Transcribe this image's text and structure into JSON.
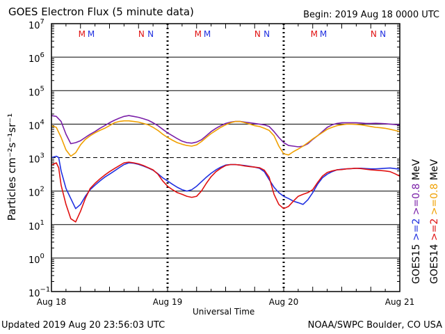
{
  "header": {
    "title": "GOES Electron Flux (5 minute data)",
    "begin": "Begin: 2019 Aug 18 0000 UTC"
  },
  "footer": {
    "updated": "Updated 2019 Aug 20 23:56:03 UTC",
    "credit": "NOAA/SWPC Boulder, CO USA"
  },
  "colors": {
    "goes15_ge2": "#1f2fe0",
    "goes14_ge2": "#e01010",
    "goes15_ge08": "#7a1fa8",
    "goes14_ge08": "#f0a000"
  },
  "chart_data": {
    "type": "line",
    "title": "GOES Electron Flux (5 minute data)",
    "xlabel": "Universal Time",
    "ylabel": "Particles cm⁻²s⁻¹sr⁻¹",
    "y_scale": "log",
    "ylim": [
      0.1,
      10000000
    ],
    "xlim": [
      0,
      72
    ],
    "x_unit": "hours since 2019 Aug 18 0000 UTC",
    "x_ticks": [
      {
        "x": 0,
        "label": "Aug 18"
      },
      {
        "x": 24,
        "label": "Aug 19"
      },
      {
        "x": 48,
        "label": "Aug 20"
      },
      {
        "x": 72,
        "label": "Aug 21"
      }
    ],
    "y_ticks": [
      {
        "exp": 7,
        "label": "10",
        "sup": "7"
      },
      {
        "exp": 6,
        "label": "10",
        "sup": "6"
      },
      {
        "exp": 5,
        "label": "10",
        "sup": "5"
      },
      {
        "exp": 4,
        "label": "10",
        "sup": "4"
      },
      {
        "exp": 3,
        "label": "10",
        "sup": "3"
      },
      {
        "exp": 2,
        "label": "10",
        "sup": "2"
      },
      {
        "exp": 1,
        "label": "10",
        "sup": "1"
      },
      {
        "exp": 0,
        "label": "10",
        "sup": "0"
      },
      {
        "exp": -1,
        "label": "10",
        "sup": "−1"
      }
    ],
    "grid_solid_exp": [
      6,
      5,
      4,
      2,
      1,
      0
    ],
    "grid_dashed_exp": [
      3
    ],
    "mn_markers": [
      {
        "x": 6.3,
        "letter": "M",
        "color": "#e01010"
      },
      {
        "x": 8.2,
        "letter": "M",
        "color": "#1f2fe0"
      },
      {
        "x": 18.6,
        "letter": "N",
        "color": "#e01010"
      },
      {
        "x": 20.5,
        "letter": "N",
        "color": "#1f2fe0"
      },
      {
        "x": 30.3,
        "letter": "M",
        "color": "#e01010"
      },
      {
        "x": 32.2,
        "letter": "M",
        "color": "#1f2fe0"
      },
      {
        "x": 42.6,
        "letter": "N",
        "color": "#e01010"
      },
      {
        "x": 44.5,
        "letter": "N",
        "color": "#1f2fe0"
      },
      {
        "x": 54.3,
        "letter": "M",
        "color": "#e01010"
      },
      {
        "x": 56.2,
        "letter": "M",
        "color": "#1f2fe0"
      },
      {
        "x": 66.6,
        "letter": "N",
        "color": "#e01010"
      },
      {
        "x": 68.5,
        "letter": "N",
        "color": "#1f2fe0"
      }
    ],
    "legend": [
      {
        "sat": "GOES15",
        "energy": ">=2",
        "energy2": ">=0.8",
        "unit": "MeV",
        "color2": "#1f2fe0",
        "color08": "#7a1fa8"
      },
      {
        "sat": "GOES14",
        "energy": ">=2",
        "energy2": ">=0.8",
        "unit": "MeV",
        "color2": "#e01010",
        "color08": "#f0a000"
      }
    ],
    "series": [
      {
        "name": "GOES15 >=2 MeV",
        "color": "#1f2fe0",
        "x": [
          0,
          1,
          1.5,
          2,
          3,
          4,
          5,
          6,
          7,
          8,
          9,
          10,
          11,
          12,
          13,
          14,
          15,
          16,
          17,
          18,
          19,
          20,
          21,
          22,
          23,
          24,
          25,
          26,
          27,
          28,
          29,
          30,
          31,
          32,
          33,
          34,
          35,
          36,
          37,
          38,
          39,
          40,
          41,
          42,
          43,
          44,
          45,
          46,
          47,
          48,
          49,
          50,
          51,
          52,
          53,
          54,
          55,
          56,
          57,
          58,
          59,
          60,
          61,
          62,
          63,
          64,
          65,
          66,
          67,
          68,
          69,
          70,
          71,
          72
        ],
        "values": [
          1000,
          1100,
          1000,
          400,
          120,
          60,
          30,
          40,
          70,
          110,
          150,
          200,
          260,
          320,
          400,
          500,
          620,
          700,
          680,
          630,
          560,
          490,
          420,
          330,
          250,
          200,
          160,
          130,
          110,
          100,
          110,
          140,
          190,
          260,
          340,
          430,
          520,
          600,
          620,
          620,
          600,
          580,
          550,
          520,
          480,
          380,
          220,
          130,
          90,
          70,
          60,
          50,
          45,
          40,
          55,
          90,
          160,
          250,
          320,
          380,
          430,
          450,
          460,
          470,
          480,
          480,
          470,
          460,
          460,
          470,
          480,
          490,
          470,
          450
        ]
      },
      {
        "name": "GOES14 >=2 MeV",
        "color": "#e01010",
        "x": [
          0,
          1,
          1.5,
          2,
          3,
          4,
          5,
          6,
          7,
          8,
          9,
          10,
          11,
          12,
          13,
          14,
          15,
          16,
          17,
          18,
          19,
          20,
          21,
          22,
          23,
          24,
          25,
          26,
          27,
          28,
          29,
          30,
          31,
          32,
          33,
          34,
          35,
          36,
          37,
          38,
          39,
          40,
          41,
          42,
          43,
          44,
          45,
          46,
          47,
          48,
          49,
          50,
          51,
          52,
          53,
          54,
          55,
          56,
          57,
          58,
          59,
          60,
          61,
          62,
          63,
          64,
          65,
          66,
          67,
          68,
          69,
          70,
          71,
          72
        ],
        "values": [
          600,
          700,
          500,
          150,
          40,
          15,
          12,
          25,
          60,
          120,
          170,
          230,
          300,
          380,
          470,
          570,
          700,
          730,
          700,
          650,
          580,
          500,
          430,
          320,
          200,
          140,
          110,
          90,
          80,
          70,
          65,
          70,
          100,
          170,
          270,
          380,
          480,
          580,
          620,
          620,
          600,
          560,
          540,
          520,
          500,
          420,
          260,
          80,
          40,
          30,
          35,
          50,
          70,
          80,
          90,
          110,
          180,
          280,
          360,
          400,
          430,
          440,
          460,
          470,
          480,
          470,
          450,
          430,
          420,
          410,
          400,
          380,
          330,
          280
        ]
      },
      {
        "name": "GOES15 >=0.8 MeV",
        "color": "#7a1fa8",
        "x": [
          0,
          1,
          2,
          3,
          4,
          5,
          6,
          7,
          8,
          9,
          10,
          11,
          12,
          13,
          14,
          15,
          16,
          17,
          18,
          19,
          20,
          21,
          22,
          23,
          24,
          25,
          26,
          27,
          28,
          29,
          30,
          31,
          32,
          33,
          34,
          35,
          36,
          37,
          38,
          39,
          40,
          41,
          42,
          43,
          44,
          45,
          46,
          47,
          48,
          49,
          50,
          51,
          52,
          53,
          54,
          55,
          56,
          57,
          58,
          59,
          60,
          61,
          62,
          63,
          64,
          65,
          66,
          67,
          68,
          69,
          70,
          71,
          72
        ],
        "values": [
          18000,
          17000,
          12000,
          5000,
          2600,
          2800,
          3200,
          4000,
          5000,
          6000,
          7500,
          9000,
          11000,
          13000,
          15000,
          17000,
          18000,
          17000,
          16000,
          14500,
          13000,
          11000,
          9000,
          7000,
          5500,
          4500,
          3700,
          3100,
          2800,
          2700,
          2900,
          3400,
          4500,
          6000,
          7500,
          9000,
          10500,
          11500,
          12000,
          12000,
          11500,
          11000,
          10500,
          10000,
          9500,
          8500,
          6000,
          4000,
          2800,
          2300,
          2200,
          2100,
          2200,
          2600,
          3500,
          4500,
          6000,
          8000,
          9500,
          10500,
          11000,
          11000,
          11000,
          11000,
          10800,
          10500,
          10500,
          10600,
          10500,
          10300,
          10000,
          9700,
          9500
        ]
      },
      {
        "name": "GOES14 >=0.8 MeV",
        "color": "#f0a000",
        "x": [
          0,
          1,
          2,
          3,
          4,
          5,
          6,
          7,
          8,
          9,
          10,
          11,
          12,
          13,
          14,
          15,
          16,
          17,
          18,
          19,
          20,
          21,
          22,
          23,
          24,
          25,
          26,
          27,
          28,
          29,
          30,
          31,
          32,
          33,
          34,
          35,
          36,
          37,
          38,
          39,
          40,
          41,
          42,
          43,
          44,
          45,
          46,
          47,
          48,
          49,
          50,
          51,
          52,
          53,
          54,
          55,
          56,
          57,
          58,
          59,
          60,
          61,
          62,
          63,
          64,
          65,
          66,
          67,
          68,
          69,
          70,
          71,
          72
        ],
        "values": [
          9000,
          8000,
          4000,
          1700,
          1100,
          1400,
          2400,
          3500,
          4500,
          5500,
          6500,
          7500,
          9000,
          11000,
          12000,
          12500,
          12500,
          12000,
          11500,
          10500,
          9500,
          8000,
          6500,
          5000,
          4000,
          3300,
          2800,
          2500,
          2300,
          2200,
          2400,
          3000,
          4000,
          5200,
          6500,
          8000,
          9500,
          11000,
          12000,
          12000,
          11000,
          10000,
          9000,
          8500,
          7500,
          6500,
          4500,
          2200,
          1300,
          1200,
          1500,
          1800,
          2200,
          2800,
          3600,
          4500,
          5600,
          7000,
          8000,
          9000,
          9500,
          10000,
          10000,
          9800,
          9500,
          9000,
          8500,
          8000,
          7800,
          7500,
          7000,
          6500,
          6000
        ]
      }
    ]
  }
}
